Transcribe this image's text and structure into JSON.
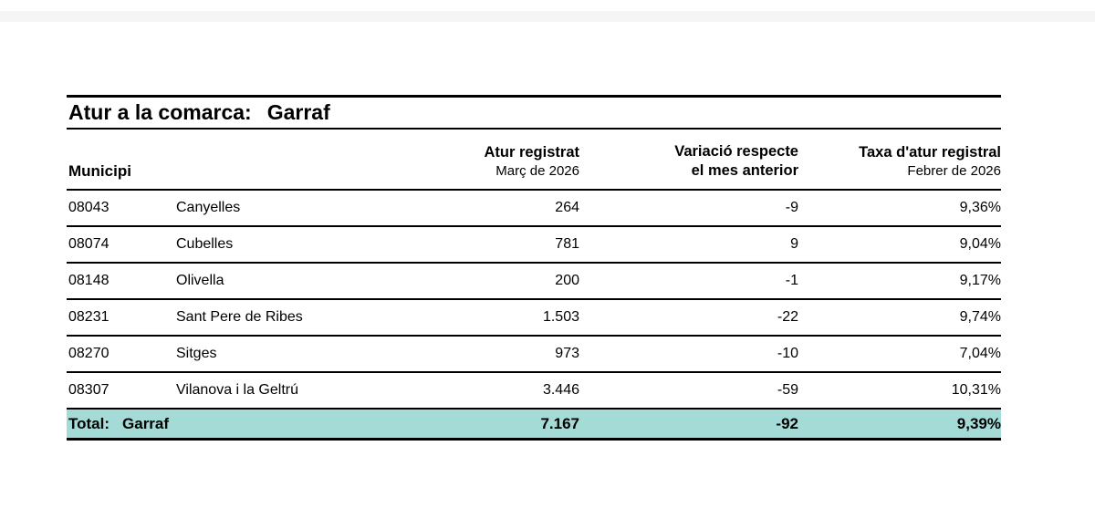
{
  "report": {
    "title_label": "Atur a la comarca:",
    "title_value": "Garraf",
    "colors": {
      "accent_teal": "#a5dbd6",
      "top_strip_gray": "#f5f5f5",
      "rule_black": "#000000"
    }
  },
  "table": {
    "headers": {
      "municipi": "Municipi",
      "atur_line1": "Atur registrat",
      "atur_line2": "Març de 2026",
      "variacio_line1": "Variació respecte",
      "variacio_line2": "el mes anterior",
      "taxa_line1": "Taxa d'atur registral",
      "taxa_line2": "Febrer de 2026"
    },
    "rows": [
      {
        "code": "08043",
        "name": "Canyelles",
        "atur": "264",
        "variacio": "-9",
        "taxa": "9,36%"
      },
      {
        "code": "08074",
        "name": "Cubelles",
        "atur": "781",
        "variacio": "9",
        "taxa": "9,04%"
      },
      {
        "code": "08148",
        "name": "Olivella",
        "atur": "200",
        "variacio": "-1",
        "taxa": "9,17%"
      },
      {
        "code": "08231",
        "name": "Sant Pere de Ribes",
        "atur": "1.503",
        "variacio": "-22",
        "taxa": "9,74%"
      },
      {
        "code": "08270",
        "name": "Sitges",
        "atur": "973",
        "variacio": "-10",
        "taxa": "7,04%"
      },
      {
        "code": "08307",
        "name": "Vilanova i la Geltrú",
        "atur": "3.446",
        "variacio": "-59",
        "taxa": "10,31%"
      }
    ],
    "total": {
      "label": "Total:",
      "name": "Garraf",
      "atur": "7.167",
      "variacio": "-92",
      "taxa": "9,39%"
    }
  }
}
